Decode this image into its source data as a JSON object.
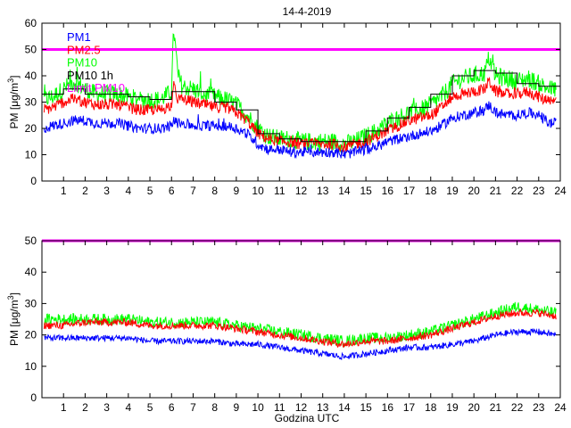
{
  "title": "14-4-2019",
  "xlabel": "Godzina UTC",
  "colors": {
    "pm1": "#0000ff",
    "pm25": "#ff0000",
    "pm10": "#00ff00",
    "pm10_1h": "#000000",
    "limit": "#ff00ff"
  },
  "chart_data": [
    {
      "type": "line",
      "panel": "top",
      "ylabel_prefix": "PM [",
      "ylabel_unit": "μg/m",
      "ylabel_sup": "3",
      "ylabel_suffix": "]",
      "xlim": [
        0,
        24
      ],
      "ylim": [
        0,
        60
      ],
      "xticks": [
        1,
        2,
        3,
        4,
        5,
        6,
        7,
        8,
        9,
        10,
        11,
        12,
        13,
        14,
        15,
        16,
        17,
        18,
        19,
        20,
        21,
        22,
        23,
        24
      ],
      "yticks": [
        0,
        10,
        20,
        30,
        40,
        50,
        60
      ],
      "legend_position": "top-left",
      "legend": [
        "PM1",
        "PM2.5",
        "PM10",
        "PM10 1h",
        "Limit PM10"
      ],
      "limit": 50,
      "series": [
        {
          "name": "PM1",
          "x": [
            0.1,
            0.5,
            1.0,
            1.5,
            2.0,
            2.5,
            3.0,
            3.5,
            4.0,
            4.5,
            5.0,
            5.5,
            6.0,
            6.1,
            6.3,
            6.5,
            7.0,
            7.5,
            8.0,
            8.5,
            9.0,
            9.5,
            10.0,
            10.5,
            11.0,
            11.5,
            12.0,
            12.5,
            13.0,
            13.5,
            14.0,
            14.5,
            15.0,
            15.5,
            16.0,
            16.5,
            17.0,
            17.5,
            18.0,
            18.5,
            19.0,
            19.5,
            20.0,
            20.5,
            20.7,
            21.0,
            21.5,
            22.0,
            22.5,
            23.0,
            23.5,
            23.8
          ],
          "values": [
            20,
            21,
            22,
            23,
            23,
            22,
            22,
            22,
            21,
            20,
            20,
            20,
            21,
            23,
            22,
            22,
            21,
            21,
            21,
            21,
            20,
            18,
            14,
            12,
            12,
            11,
            11,
            11,
            11,
            11,
            10,
            11,
            12,
            13,
            15,
            16,
            17,
            18,
            19,
            21,
            24,
            25,
            26,
            27,
            29,
            26,
            25,
            25,
            26,
            25,
            22,
            22
          ]
        },
        {
          "name": "PM2.5",
          "x": [
            0.1,
            0.5,
            1.0,
            1.5,
            2.0,
            2.5,
            3.0,
            3.5,
            4.0,
            4.5,
            5.0,
            5.5,
            6.0,
            6.1,
            6.3,
            6.5,
            7.0,
            7.5,
            8.0,
            8.5,
            9.0,
            9.5,
            10.0,
            10.5,
            11.0,
            11.5,
            12.0,
            12.5,
            13.0,
            13.5,
            14.0,
            14.5,
            15.0,
            15.5,
            16.0,
            16.5,
            17.0,
            17.5,
            18.0,
            18.5,
            19.0,
            19.5,
            20.0,
            20.5,
            20.7,
            21.0,
            21.5,
            22.0,
            22.5,
            23.0,
            23.5,
            23.8
          ],
          "values": [
            27,
            28,
            30,
            31,
            30,
            29,
            29,
            29,
            28,
            27,
            27,
            27,
            29,
            36,
            31,
            31,
            30,
            29,
            28,
            28,
            26,
            23,
            18,
            16,
            15,
            15,
            14,
            14,
            14,
            14,
            13,
            14,
            15,
            17,
            19,
            21,
            23,
            24,
            25,
            28,
            32,
            33,
            34,
            35,
            38,
            34,
            33,
            33,
            34,
            32,
            30,
            30
          ]
        },
        {
          "name": "PM10",
          "x": [
            0.1,
            0.5,
            1.0,
            1.5,
            2.0,
            2.5,
            3.0,
            3.5,
            4.0,
            4.5,
            5.0,
            5.5,
            6.0,
            6.1,
            6.3,
            6.5,
            7.0,
            7.5,
            8.0,
            8.5,
            9.0,
            9.5,
            10.0,
            10.5,
            11.0,
            11.5,
            12.0,
            12.5,
            13.0,
            13.5,
            14.0,
            14.5,
            15.0,
            15.5,
            16.0,
            16.5,
            17.0,
            17.5,
            18.0,
            18.5,
            19.0,
            19.5,
            20.0,
            20.5,
            20.7,
            21.0,
            21.5,
            22.0,
            22.5,
            23.0,
            23.5,
            23.8
          ],
          "values": [
            31,
            32,
            35,
            38,
            35,
            33,
            33,
            33,
            32,
            31,
            31,
            31,
            34,
            58,
            40,
            36,
            35,
            33,
            32,
            31,
            29,
            25,
            20,
            17,
            16,
            16,
            15,
            15,
            15,
            15,
            14,
            15,
            17,
            19,
            22,
            24,
            26,
            27,
            29,
            32,
            37,
            39,
            40,
            41,
            47,
            40,
            39,
            38,
            39,
            37,
            35,
            35
          ]
        },
        {
          "name": "PM10 1h",
          "x": [
            0,
            1,
            2,
            3,
            4,
            5,
            6,
            7,
            8,
            9,
            10,
            11,
            12,
            13,
            14,
            15,
            16,
            17,
            18,
            19,
            20,
            21,
            22,
            23
          ],
          "values": [
            33,
            35,
            33,
            33,
            32,
            31,
            34,
            34,
            30,
            27,
            18,
            16,
            15,
            15,
            15,
            19,
            24,
            28,
            33,
            40,
            42,
            41,
            37,
            36
          ]
        }
      ]
    },
    {
      "type": "line",
      "panel": "bottom",
      "ylabel_prefix": "PM [",
      "ylabel_unit": "μg/m",
      "ylabel_sup": "3",
      "ylabel_suffix": "]",
      "xlim": [
        0,
        24
      ],
      "ylim": [
        0,
        50
      ],
      "xticks": [
        1,
        2,
        3,
        4,
        5,
        6,
        7,
        8,
        9,
        10,
        11,
        12,
        13,
        14,
        15,
        16,
        17,
        18,
        19,
        20,
        21,
        22,
        23,
        24
      ],
      "yticks": [
        0,
        10,
        20,
        30,
        40,
        50
      ],
      "limit": 50,
      "series": [
        {
          "name": "PM1",
          "x": [
            0.1,
            1,
            2,
            3,
            4,
            5,
            6,
            7,
            8,
            9,
            10,
            11,
            12,
            13,
            14,
            15,
            16,
            17,
            18,
            19,
            20,
            21,
            22,
            23,
            23.8
          ],
          "values": [
            19,
            19,
            19,
            19,
            19,
            18,
            18,
            18,
            18,
            17,
            17,
            16,
            15,
            14,
            13,
            14,
            15,
            16,
            16,
            17,
            18,
            20,
            21,
            21,
            20
          ]
        },
        {
          "name": "PM2.5",
          "x": [
            0.1,
            1,
            2,
            3,
            4,
            5,
            6,
            7,
            8,
            9,
            10,
            11,
            12,
            13,
            14,
            15,
            16,
            17,
            18,
            19,
            20,
            21,
            22,
            23,
            23.8
          ],
          "values": [
            23,
            23,
            24,
            24,
            24,
            23,
            23,
            23,
            23,
            22,
            21,
            20,
            19,
            18,
            17,
            18,
            18,
            19,
            20,
            22,
            24,
            26,
            27,
            27,
            26
          ]
        },
        {
          "name": "PM10",
          "x": [
            0.1,
            1,
            2,
            3,
            4,
            5,
            6,
            7,
            8,
            9,
            10,
            11,
            12,
            13,
            14,
            15,
            16,
            17,
            18,
            19,
            20,
            21,
            22,
            23,
            23.8
          ],
          "values": [
            25,
            25,
            25,
            25,
            25,
            24,
            24,
            24,
            24,
            23,
            22,
            21,
            20,
            19,
            18,
            19,
            19,
            20,
            21,
            23,
            25,
            27,
            29,
            28,
            27
          ]
        }
      ]
    }
  ]
}
